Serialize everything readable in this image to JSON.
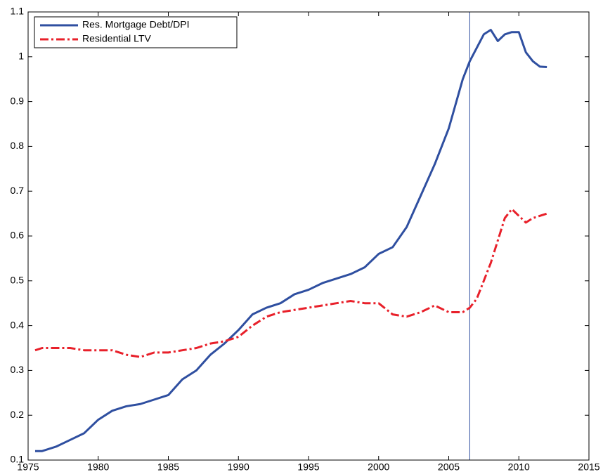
{
  "chart_data": {
    "type": "line",
    "x": [
      1975.5,
      1976,
      1977,
      1978,
      1979,
      1980,
      1981,
      1982,
      1983,
      1984,
      1985,
      1986,
      1987,
      1988,
      1989,
      1990,
      1991,
      1992,
      1993,
      1994,
      1995,
      1996,
      1997,
      1998,
      1999,
      2000,
      2001,
      2002,
      2003,
      2004,
      2005,
      2006,
      2006.5,
      2007,
      2007.5,
      2008,
      2008.5,
      2009,
      2009.5,
      2010,
      2010.5,
      2011,
      2011.5,
      2012
    ],
    "series": [
      {
        "name": "Res. Mortgage Debt/DPI",
        "color": "#2f4fa0",
        "style": "solid",
        "values": [
          0.12,
          0.12,
          0.13,
          0.145,
          0.16,
          0.19,
          0.21,
          0.22,
          0.225,
          0.235,
          0.245,
          0.28,
          0.3,
          0.335,
          0.36,
          0.39,
          0.425,
          0.44,
          0.45,
          0.47,
          0.48,
          0.495,
          0.505,
          0.515,
          0.53,
          0.56,
          0.575,
          0.62,
          0.69,
          0.76,
          0.84,
          0.95,
          0.99,
          1.02,
          1.05,
          1.06,
          1.035,
          1.05,
          1.055,
          1.055,
          1.01,
          0.99,
          0.978,
          0.977
        ]
      },
      {
        "name": "Residential LTV",
        "color": "#e8202a",
        "style": "dashdot",
        "values": [
          0.345,
          0.35,
          0.35,
          0.35,
          0.345,
          0.345,
          0.345,
          0.335,
          0.33,
          0.34,
          0.34,
          0.345,
          0.35,
          0.36,
          0.365,
          0.375,
          0.4,
          0.42,
          0.43,
          0.435,
          0.44,
          0.445,
          0.45,
          0.455,
          0.45,
          0.45,
          0.425,
          0.42,
          0.43,
          0.445,
          0.43,
          0.43,
          0.44,
          0.46,
          0.5,
          0.54,
          0.59,
          0.64,
          0.66,
          0.645,
          0.63,
          0.64,
          0.645,
          0.65
        ]
      }
    ],
    "vline_x": 2006.5,
    "vline_color": "#2f4fa0",
    "xlim": [
      1975,
      2015
    ],
    "xticks": [
      1975,
      1980,
      1985,
      1990,
      1995,
      2000,
      2005,
      2010,
      2015
    ],
    "ylim": [
      0.1,
      1.1
    ],
    "yticks": [
      0.1,
      0.2,
      0.3,
      0.4,
      0.5,
      0.6,
      0.7,
      0.8,
      0.9,
      1,
      1.1
    ],
    "legend": "upper-left"
  }
}
